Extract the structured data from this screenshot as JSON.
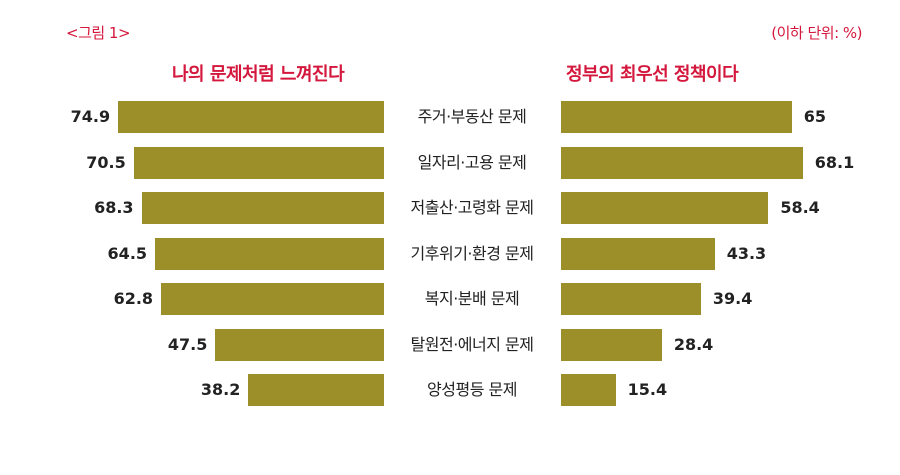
{
  "figure_label": "<그림 1>",
  "unit_note": "(이하 단위: %)",
  "colors": {
    "accent_red": "#d4183d",
    "bar": "#9c8e28",
    "text": "#222222"
  },
  "chart_data": [
    {
      "type": "bar",
      "orientation": "horizontal",
      "direction": "right-to-left",
      "title": "나의 문제처럼 느껴진다",
      "unit": "%",
      "categories": [
        "주거·부동산 문제",
        "일자리·고용 문제",
        "저출산·고령화 문제",
        "기후위기·환경 문제",
        "복지·분배 문제",
        "탈원전·에너지 문제",
        "양성평등 문제"
      ],
      "values": [
        74.9,
        70.5,
        68.3,
        64.5,
        62.8,
        47.5,
        38.2
      ],
      "value_labels": [
        "74.9",
        "70.5",
        "68.3",
        "64.5",
        "62.8",
        "47.5",
        "38.2"
      ],
      "grid": false,
      "legend": false
    },
    {
      "type": "bar",
      "orientation": "horizontal",
      "direction": "left-to-right",
      "title": "정부의 최우선 정책이다",
      "unit": "%",
      "categories": [
        "주거·부동산 문제",
        "일자리·고용 문제",
        "저출산·고령화 문제",
        "기후위기·환경 문제",
        "복지·분배 문제",
        "탈원전·에너지 문제",
        "양성평등 문제"
      ],
      "values": [
        65,
        68.1,
        58.4,
        43.3,
        39.4,
        28.4,
        15.4
      ],
      "value_labels": [
        "65",
        "68.1",
        "58.4",
        "43.3",
        "39.4",
        "28.4",
        "15.4"
      ],
      "grid": false,
      "legend": false
    }
  ]
}
